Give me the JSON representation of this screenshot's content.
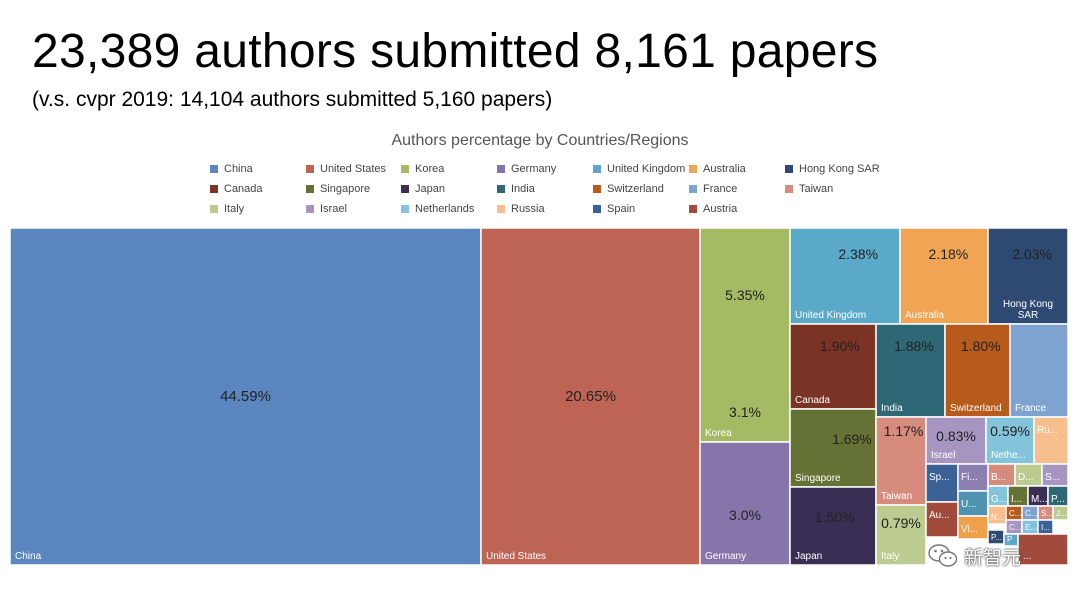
{
  "header": {
    "headline": "23,389 authors submitted 8,161 papers",
    "subheadline": "(v.s. cvpr 2019: 14,104 authors submitted 5,160 papers)"
  },
  "watermark": {
    "text": "新智元",
    "icon": "wechat-icon"
  },
  "chart_data": {
    "type": "treemap",
    "title": "Authors percentage by Countries/Regions",
    "legend_placement": "top",
    "legend": [
      {
        "name": "China",
        "color": "#5b86c0"
      },
      {
        "name": "United States",
        "color": "#be6454"
      },
      {
        "name": "Korea",
        "color": "#a4bb63"
      },
      {
        "name": "Germany",
        "color": "#8675aa"
      },
      {
        "name": "United Kingdom",
        "color": "#5ba9c9"
      },
      {
        "name": "Australia",
        "color": "#f2a455"
      },
      {
        "name": "Hong Kong SAR",
        "color": "#2e4a72"
      },
      {
        "name": "Canada",
        "color": "#7b3326"
      },
      {
        "name": "Singapore",
        "color": "#647235"
      },
      {
        "name": "Japan",
        "color": "#3a2e55"
      },
      {
        "name": "India",
        "color": "#2e6877"
      },
      {
        "name": "Switzerland",
        "color": "#b75b1d"
      },
      {
        "name": "France",
        "color": "#7ea3d1"
      },
      {
        "name": "Taiwan",
        "color": "#d68b7c"
      },
      {
        "name": "Italy",
        "color": "#bccb8f"
      },
      {
        "name": "Israel",
        "color": "#a595c0"
      },
      {
        "name": "Netherlands",
        "color": "#83c4da"
      },
      {
        "name": "Russia",
        "color": "#f6bf8d"
      },
      {
        "name": "Spain",
        "color": "#3b6296"
      },
      {
        "name": "Austria",
        "color": "#a04b3c"
      }
    ],
    "tiles": [
      {
        "name": "China",
        "label": "China",
        "value_label": "44.59%",
        "value": 44.59,
        "color": "#5b86c0"
      },
      {
        "name": "United States",
        "label": "United States",
        "value_label": "20.65%",
        "value": 20.65,
        "color": "#be6454"
      },
      {
        "name": "Korea",
        "label": "Korea",
        "value_label": "5.35%",
        "value_label_2": "3.1%",
        "value": 5.35,
        "color": "#a4bb63"
      },
      {
        "name": "Germany",
        "label": "Germany",
        "value_label": "3.0%",
        "value": 3.0,
        "color": "#8675aa"
      },
      {
        "name": "United Kingdom",
        "label": "United Kingdom",
        "value_label": "2.38%",
        "value": 2.38,
        "color": "#5ba9c9"
      },
      {
        "name": "Australia",
        "label": "Australia",
        "value_label": "2.18%",
        "value": 2.18,
        "color": "#f2a455"
      },
      {
        "name": "Hong Kong SAR",
        "label": "Hong Kong SAR",
        "value_label": "2.03%",
        "value": 2.03,
        "color": "#2e4a72"
      },
      {
        "name": "Canada",
        "label": "Canada",
        "value_label": "1.90%",
        "value": 1.9,
        "color": "#7b3326"
      },
      {
        "name": "India",
        "label": "India",
        "value_label": "1.88%",
        "value": 1.88,
        "color": "#2e6877"
      },
      {
        "name": "Switzerland",
        "label": "Switzerland",
        "value_label": "1.80%",
        "value": 1.8,
        "color": "#b75b1d"
      },
      {
        "name": "France",
        "label": "France",
        "value_label": "",
        "value": null,
        "color": "#7ea3d1"
      },
      {
        "name": "Singapore",
        "label": "Singapore",
        "value_label": "1.69%",
        "value": 1.69,
        "color": "#647235"
      },
      {
        "name": "Japan",
        "label": "Japan",
        "value_label": "1.50%",
        "value": 1.5,
        "color": "#3a2e55"
      },
      {
        "name": "Taiwan",
        "label": "Taiwan",
        "value_label": "1.17%",
        "value": 1.17,
        "color": "#d68b7c"
      },
      {
        "name": "Italy",
        "label": "Italy",
        "value_label": "0.79%",
        "value": 0.79,
        "color": "#bccb8f"
      },
      {
        "name": "Israel",
        "label": "Israel",
        "value_label": "0.83%",
        "value": 0.83,
        "color": "#a595c0"
      },
      {
        "name": "Netherlands",
        "label": "Nethe...",
        "value_label": "0.59%",
        "value": 0.59,
        "color": "#83c4da"
      },
      {
        "name": "Russia",
        "label": "Ru...",
        "value_label": "",
        "value": null,
        "color": "#f6bf8d"
      },
      {
        "name": "Spain",
        "label": "Sp...",
        "value_label": "",
        "value": null,
        "color": "#3b6296"
      },
      {
        "name": "Austria",
        "label": "Au...",
        "value_label": "",
        "value": null,
        "color": "#a04b3c"
      },
      {
        "name": "Fi",
        "label": "Fi...",
        "value_label": "",
        "value": null,
        "color": "#8a7fb0"
      },
      {
        "name": "U",
        "label": "U...",
        "value_label": "",
        "value": null,
        "color": "#4e93b0"
      },
      {
        "name": "Vi",
        "label": "Vi...",
        "value_label": "",
        "value": null,
        "color": "#f0a04b"
      },
      {
        "name": "B",
        "label": "B...",
        "value_label": "",
        "value": null,
        "color": "#d68b7c"
      },
      {
        "name": "D",
        "label": "D...",
        "value_label": "",
        "value": null,
        "color": "#bccb8f"
      },
      {
        "name": "S1",
        "label": "S...",
        "value_label": "",
        "value": null,
        "color": "#a595c0"
      },
      {
        "name": "G",
        "label": "G...",
        "value_label": "",
        "value": null,
        "color": "#83c4da"
      },
      {
        "name": "I1",
        "label": "I...",
        "value_label": "",
        "value": null,
        "color": "#647235"
      },
      {
        "name": "M",
        "label": "M...",
        "value_label": "",
        "value": null,
        "color": "#3a2e55"
      },
      {
        "name": "P1",
        "label": "P...",
        "value_label": "",
        "value": null,
        "color": "#2e6877"
      },
      {
        "name": "N",
        "label": "N...",
        "value_label": "",
        "value": null,
        "color": "#f6bf8d"
      },
      {
        "name": "C1",
        "label": "C...",
        "value_label": "",
        "value": null,
        "color": "#b75b1d"
      },
      {
        "name": "C2",
        "label": "C...",
        "value_label": "",
        "value": null,
        "color": "#7ea3d1"
      },
      {
        "name": "S2",
        "label": "S...",
        "value_label": "",
        "value": null,
        "color": "#d68b7c"
      },
      {
        "name": "J",
        "label": "J...",
        "value_label": "",
        "value": null,
        "color": "#bccb8f"
      },
      {
        "name": "C3",
        "label": "C...",
        "value_label": "",
        "value": null,
        "color": "#a595c0"
      },
      {
        "name": "E",
        "label": "E...",
        "value_label": "",
        "value": null,
        "color": "#83c4da"
      },
      {
        "name": "I2",
        "label": "I...",
        "value_label": "",
        "value": null,
        "color": "#3b6296"
      },
      {
        "name": "P2",
        "label": "P...",
        "value_label": "",
        "value": null,
        "color": "#2e4a72"
      },
      {
        "name": "P3",
        "label": "P",
        "value_label": "",
        "value": null,
        "color": "#5ba9c9"
      },
      {
        "name": "H",
        "label": "...",
        "value_label": "",
        "value": null,
        "color": "#a04b3c"
      }
    ]
  }
}
